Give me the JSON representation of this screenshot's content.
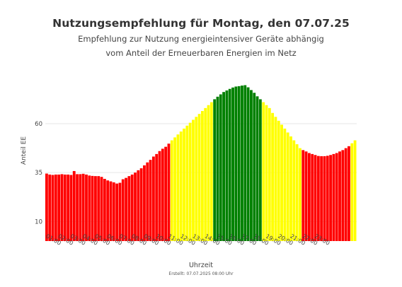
{
  "header": {
    "title": "Nutzungsempfehlung für Montag, den 07.07.25",
    "subtitle_line1": "Empfehlung zur Nutzung energieintensiver Geräte abhängig",
    "subtitle_line2": "vom Anteil der Erneuerbaren Energien im Netz"
  },
  "footer": {
    "created": "Erstellt: 07.07.2025 08:00 Uhr"
  },
  "colors": {
    "red": "#ff0000",
    "yellow": "#ffff00",
    "green": "#008000",
    "grid": "#e6e6e6"
  },
  "chart_data": {
    "type": "bar",
    "title": "Nutzungsempfehlung für Montag, den 07.07.25",
    "xlabel": "Uhrzeit",
    "ylabel": "Anteil EE",
    "ylim": [
      0,
      90
    ],
    "yticks": [
      10,
      35,
      60
    ],
    "grid": true,
    "xtick_labels": [
      "01:00",
      "02:00",
      "03:00",
      "04:00",
      "05:00",
      "06:00",
      "07:00",
      "08:00",
      "09:00",
      "10:00",
      "11:00",
      "12:00",
      "13:00",
      "14:00",
      "15:00",
      "16:00",
      "17:00",
      "18:00",
      "19:00",
      "20:00",
      "21:00",
      "22:00",
      "23:00"
    ],
    "interval": "15 min",
    "values": [
      34.5,
      34,
      33.8,
      34,
      34,
      34.2,
      34,
      34,
      33.8,
      35.8,
      34.2,
      34.2,
      34.4,
      34,
      33.5,
      33.3,
      33.2,
      33.2,
      32.8,
      31.8,
      31,
      30.5,
      30,
      29.4,
      29.8,
      31.6,
      32.3,
      33.2,
      34,
      35,
      36.2,
      37.2,
      38.7,
      40.2,
      41.5,
      43.2,
      44.5,
      46,
      47.2,
      48.2,
      49.8,
      51.5,
      53,
      54.5,
      56,
      57.5,
      59,
      60.5,
      62,
      63.5,
      65,
      66.5,
      68,
      69.5,
      71,
      72.5,
      73.8,
      75,
      76.2,
      77,
      77.8,
      78.5,
      79,
      79.2,
      79.5,
      79.7,
      78.6,
      77.2,
      75.8,
      74,
      72.5,
      71,
      69.5,
      68,
      65.5,
      63.5,
      61.5,
      59.5,
      57.5,
      55.5,
      53.5,
      51.5,
      49.5,
      47.5,
      46.5,
      45.8,
      45,
      44.5,
      44,
      43.5,
      43.4,
      43.4,
      43.6,
      44,
      44.5,
      45,
      45.8,
      46.5,
      47.5,
      48.5,
      50,
      51.5
    ],
    "categories": [
      "red",
      "red",
      "red",
      "red",
      "red",
      "red",
      "red",
      "red",
      "red",
      "red",
      "red",
      "red",
      "red",
      "red",
      "red",
      "red",
      "red",
      "red",
      "red",
      "red",
      "red",
      "red",
      "red",
      "red",
      "red",
      "red",
      "red",
      "red",
      "red",
      "red",
      "red",
      "red",
      "red",
      "red",
      "red",
      "red",
      "red",
      "red",
      "red",
      "red",
      "red",
      "yellow",
      "yellow",
      "yellow",
      "yellow",
      "yellow",
      "yellow",
      "yellow",
      "yellow",
      "yellow",
      "yellow",
      "yellow",
      "yellow",
      "yellow",
      "yellow",
      "green",
      "green",
      "green",
      "green",
      "green",
      "green",
      "green",
      "green",
      "green",
      "green",
      "green",
      "green",
      "green",
      "green",
      "green",
      "green",
      "yellow",
      "yellow",
      "yellow",
      "yellow",
      "yellow",
      "yellow",
      "yellow",
      "yellow",
      "yellow",
      "yellow",
      "yellow",
      "yellow",
      "yellow",
      "red",
      "red",
      "red",
      "red",
      "red",
      "red",
      "red",
      "red",
      "red",
      "red",
      "red",
      "red",
      "red",
      "red",
      "red",
      "red",
      "yellow",
      "yellow"
    ]
  }
}
